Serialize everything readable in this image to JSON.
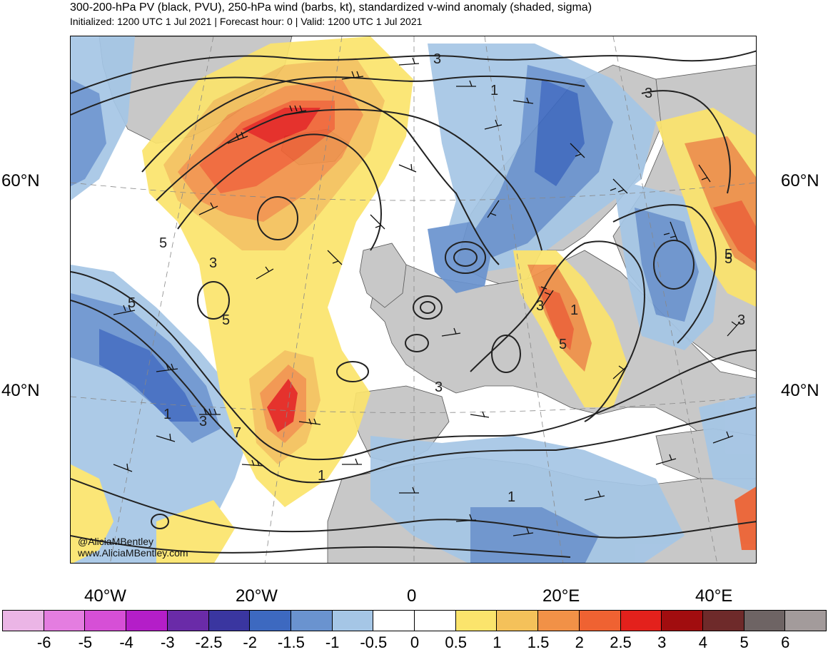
{
  "header": {
    "title": "300-200-hPa PV (black, PVU), 250-hPa wind (barbs, kt), standardized v-wind anomaly (shaded, sigma)",
    "subtitle": "Initialized: 1200 UTC 1 Jul 2021 | Forecast hour: 0 | Valid: 1200 UTC 1 Jul 2021"
  },
  "credits": {
    "handle": "@AliciaMBentley",
    "website": "www.AliciaMBentley.com"
  },
  "latitude_labels": {
    "lat60_left": "60°N",
    "lat60_right": "60°N",
    "lat40_left": "40°N",
    "lat40_right": "40°N"
  },
  "longitude_labels": [
    "40°W",
    "20°W",
    "0",
    "20°E",
    "40°E"
  ],
  "contour_labels": [
    "3",
    "1",
    "3",
    "5",
    "3",
    "5",
    "5",
    "5",
    "1",
    "3",
    "7",
    "1",
    "3",
    "3",
    "1",
    "5",
    "3",
    "5",
    "1"
  ],
  "colorbar": {
    "colors": [
      "#ebb5e6",
      "#e47de0",
      "#d64fd6",
      "#b41ec8",
      "#6a2ba8",
      "#3a36a0",
      "#3d69c0",
      "#6a93cf",
      "#a5c6e6",
      "#ffffff",
      "#ffffff",
      "#fbe46c",
      "#f4c15a",
      "#f19147",
      "#ef6232",
      "#e3211c",
      "#a10d0f",
      "#6e2a2a",
      "#6e6464",
      "#a39b9b"
    ],
    "ticks": [
      "-6",
      "-5",
      "-4",
      "-3",
      "-2.5",
      "-2",
      "-1.5",
      "-1",
      "-0.5",
      "0",
      "0.5",
      "1",
      "1.5",
      "2",
      "2.5",
      "3",
      "4",
      "5",
      "6"
    ]
  },
  "colors": {
    "land": "#c8c8c8",
    "ocean": "#ffffff",
    "contour": "#222222",
    "pos_05": "#fbe46c",
    "pos_1": "#f4c15a",
    "pos_15": "#f19147",
    "pos_2": "#ef6232",
    "pos_25": "#e3211c",
    "neg_05": "#a5c6e6",
    "neg_1": "#6a93cf",
    "neg_15": "#3d69c0"
  }
}
